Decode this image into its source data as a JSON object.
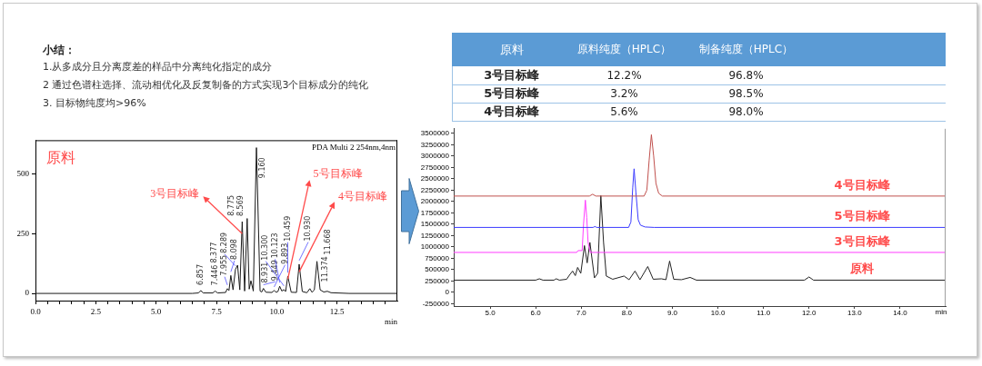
{
  "chart_data": [
    {
      "type": "other",
      "title": "小结：",
      "annotations": [
        "1.从多成分且分离度差的样品中分离纯化指定的成分",
        "2 通过色谱柱选择、流动相优化及反复制备的方式实现3个目标成分的纯化",
        "3. 目标物纯度均>96%"
      ]
    },
    {
      "type": "other",
      "ylabel": "原料",
      "categories": [
        "3号目标峰",
        "5号目标峰",
        "4号目标峰"
      ],
      "series": [
        {
          "name": "原料纯度（HPLC）",
          "values": [
            12.2,
            3.2,
            5.6
          ],
          "value_labels": [
            "12.2%",
            "3.2%",
            "5.6%"
          ]
        },
        {
          "name": "制备纯度（HPLC）",
          "values": [
            96.8,
            98.5,
            98.0
          ],
          "value_labels": [
            "96.8%",
            "98.5%",
            "98.0%"
          ]
        }
      ]
    },
    {
      "type": "line",
      "title": "原料",
      "subtitle": "PDA Multi 2 254nm,4nm",
      "xlabel": "min",
      "color": "#1a1a1a",
      "marker": "none",
      "x": [
        0,
        6.5,
        6.75,
        6.857,
        6.95,
        7.35,
        7.446,
        7.55,
        7.88,
        7.955,
        8.02,
        8.098,
        8.19,
        8.289,
        8.377,
        8.47,
        8.569,
        8.67,
        8.775,
        8.86,
        8.931,
        9.03,
        9.16,
        9.31,
        9.38,
        9.449,
        9.55,
        9.8,
        9.893,
        9.98,
        10.05,
        10.123,
        10.21,
        10.3,
        10.37,
        10.459,
        10.6,
        10.82,
        10.93,
        11.06,
        11.25,
        11.374,
        11.46,
        11.56,
        11.668,
        11.8,
        11.95,
        12.1,
        12.25,
        13,
        15
      ],
      "values": [
        0,
        0,
        2,
        12,
        2,
        2,
        10,
        2,
        4,
        20,
        12,
        75,
        15,
        100,
        118,
        15,
        300,
        10,
        313,
        18,
        53,
        10,
        609,
        10,
        6,
        21,
        5,
        4,
        12,
        5,
        8,
        30,
        10,
        16,
        8,
        72,
        5,
        4,
        122,
        8,
        3,
        20,
        5,
        15,
        134,
        15,
        6,
        9,
        3,
        0,
        0
      ],
      "xlim": [
        0,
        15
      ],
      "ylim": [
        -30,
        640
      ],
      "xticks": [
        {
          "value": 0,
          "label": "0.0"
        },
        {
          "value": 0.5,
          "label": null
        },
        {
          "value": 1,
          "label": null
        },
        {
          "value": 1.5,
          "label": null
        },
        {
          "value": 2,
          "label": null
        },
        2.5,
        {
          "value": 3,
          "label": null
        },
        {
          "value": 3.5,
          "label": null
        },
        {
          "value": 4,
          "label": null
        },
        {
          "value": 4.5,
          "label": null
        },
        {
          "value": 5,
          "label": "5.0"
        },
        {
          "value": 5.5,
          "label": null
        },
        {
          "value": 6,
          "label": null
        },
        {
          "value": 6.5,
          "label": null
        },
        {
          "value": 7,
          "label": null
        },
        7.5,
        {
          "value": 8,
          "label": null
        },
        {
          "value": 8.5,
          "label": null
        },
        {
          "value": 9,
          "label": null
        },
        {
          "value": 9.5,
          "label": null
        },
        {
          "value": 10,
          "label": "10.0"
        },
        {
          "value": 10.5,
          "label": null
        },
        {
          "value": 11,
          "label": null
        },
        {
          "value": 11.5,
          "label": null
        },
        {
          "value": 12,
          "label": null
        },
        12.5,
        {
          "value": 13,
          "label": null
        },
        {
          "value": 13.5,
          "label": null
        },
        {
          "value": 14,
          "label": null
        },
        {
          "value": 14.5,
          "label": null
        }
      ],
      "yticks": [
        0,
        250,
        500
      ],
      "annotations": [
        {
          "text": "3号目标峰",
          "x": 8.569,
          "y": 250
        },
        {
          "text": "5号目标峰",
          "x": 10.459,
          "y": 60
        },
        {
          "text": "4号目标峰",
          "x": 10.93,
          "y": 90
        },
        {
          "text": "6.857",
          "x": 6.857,
          "y": 12
        },
        {
          "text": "7.446",
          "x": 7.446,
          "y": 10
        },
        {
          "text": "7.955",
          "x": 7.955,
          "y": 20
        },
        {
          "text": "8.098",
          "x": 8.098,
          "y": 75
        },
        {
          "text": "8.289",
          "x": 8.289,
          "y": 100
        },
        {
          "text": "8.377",
          "x": 8.377,
          "y": 118
        },
        {
          "text": "8.569",
          "x": 8.569,
          "y": 300
        },
        {
          "text": "8.775",
          "x": 8.775,
          "y": 313
        },
        {
          "text": "8.931",
          "x": 8.931,
          "y": 53
        },
        {
          "text": "9.160",
          "x": 9.16,
          "y": 609
        },
        {
          "text": "9.449",
          "x": 9.449,
          "y": 21
        },
        {
          "text": "9.893",
          "x": 9.893,
          "y": 12
        },
        {
          "text": "10.123",
          "x": 10.123,
          "y": 30
        },
        {
          "text": "10.300",
          "x": 10.3,
          "y": 16
        },
        {
          "text": "10.459",
          "x": 10.459,
          "y": 72
        },
        {
          "text": "10.930",
          "x": 10.93,
          "y": 122
        },
        {
          "text": "11.374",
          "x": 11.374,
          "y": 20
        },
        {
          "text": "11.668",
          "x": 11.668,
          "y": 134
        }
      ]
    },
    {
      "type": "line",
      "xlabel": "min",
      "marker": "none",
      "xlim": [
        4.2,
        15
      ],
      "ylim": [
        -300000,
        3600000
      ],
      "xticks": [
        {
          "value": 5,
          "label": "5.0"
        },
        {
          "value": 6,
          "label": "6.0"
        },
        {
          "value": 7,
          "label": "7.0"
        },
        {
          "value": 8,
          "label": "8.0"
        },
        {
          "value": 9,
          "label": "9.0"
        },
        {
          "value": 10,
          "label": "10.0"
        },
        {
          "value": 11,
          "label": "11.0"
        },
        {
          "value": 12,
          "label": "12.0"
        },
        {
          "value": 13,
          "label": "13.0"
        },
        {
          "value": 14,
          "label": "14.0"
        }
      ],
      "yticks": [
        -250000,
        0,
        250000,
        500000,
        750000,
        1000000,
        1250000,
        1500000,
        1750000,
        2000000,
        2250000,
        2500000,
        2750000,
        3000000,
        3250000,
        3500000
      ],
      "series": [
        {
          "name": "4号目标峰",
          "color": "#c0504d",
          "x": [
            4.2,
            7.18,
            7.25,
            7.32,
            8.38,
            8.44,
            8.49,
            8.54,
            8.59,
            8.64,
            8.7,
            8.78,
            15
          ],
          "values": [
            2120000,
            2120000,
            2160000,
            2120000,
            2120000,
            2250000,
            2900000,
            3470000,
            3000000,
            2400000,
            2180000,
            2120000,
            2120000
          ]
        },
        {
          "name": "5号目标峰",
          "color": "#3b3bff",
          "x": [
            4.2,
            7.26,
            7.3,
            7.34,
            8.04,
            8.09,
            8.13,
            8.16,
            8.2,
            8.25,
            8.3,
            8.4,
            8.6,
            15
          ],
          "values": [
            1430000,
            1430000,
            1450000,
            1430000,
            1430000,
            1550000,
            2300000,
            2720000,
            2200000,
            1600000,
            1480000,
            1440000,
            1430000,
            1430000
          ]
        },
        {
          "name": "3号目标峰",
          "color": "#ff3dff",
          "x": [
            4.2,
            6.9,
            6.93,
            7.02,
            7.05,
            7.09,
            7.12,
            7.15,
            7.2,
            15
          ],
          "values": [
            880000,
            880000,
            920000,
            920000,
            1500000,
            2030000,
            1650000,
            1100000,
            880000,
            880000
          ]
        },
        {
          "name": "原料",
          "color": "#222222",
          "x": [
            4.2,
            6.0,
            6.08,
            6.16,
            6.4,
            6.45,
            6.52,
            6.68,
            6.74,
            6.81,
            6.87,
            6.92,
            6.99,
            7.07,
            7.13,
            7.19,
            7.29,
            7.36,
            7.43,
            7.49,
            7.55,
            7.69,
            7.94,
            8.05,
            8.18,
            8.29,
            8.46,
            8.58,
            8.76,
            8.86,
            8.94,
            9.03,
            9.2,
            9.39,
            9.53,
            11.9,
            12.0,
            12.1,
            15
          ],
          "values": [
            270000,
            270000,
            300000,
            270000,
            270000,
            300000,
            270000,
            290000,
            380000,
            470000,
            370000,
            550000,
            420000,
            1030000,
            650000,
            1100000,
            320000,
            420000,
            2130000,
            1100000,
            360000,
            290000,
            360000,
            280000,
            470000,
            280000,
            570000,
            290000,
            300000,
            280000,
            690000,
            290000,
            280000,
            330000,
            270000,
            270000,
            340000,
            270000,
            270000
          ]
        }
      ]
    }
  ]
}
